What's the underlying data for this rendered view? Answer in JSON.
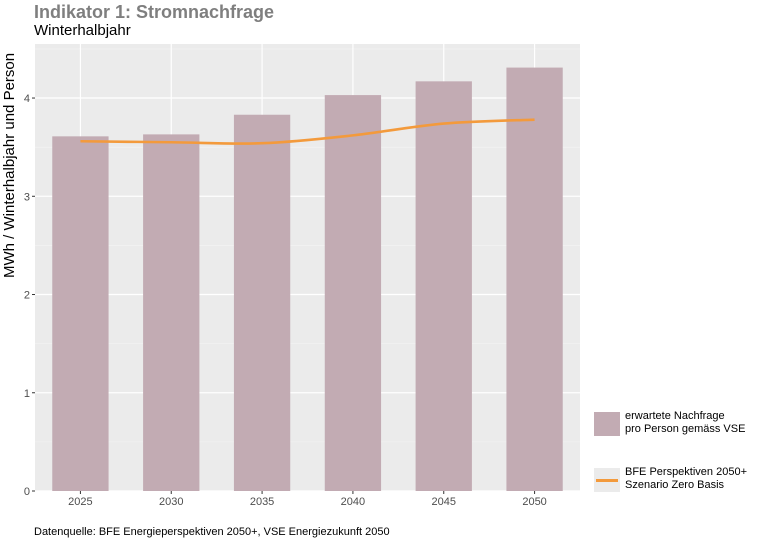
{
  "chart_data": {
    "type": "bar",
    "title": "Indikator 1: Stromnachfrage",
    "subtitle": "Winterhalbjahr",
    "xlabel": "",
    "ylabel": "MWh / Winterhalbjahr und Person",
    "categories": [
      "2025",
      "2030",
      "2035",
      "2040",
      "2045",
      "2050"
    ],
    "ylim": [
      0,
      4.55
    ],
    "yticks": [
      0,
      1,
      2,
      3,
      4
    ],
    "grid": true,
    "series": [
      {
        "name": "erwartete Nachfrage pro Person gemäss VSE",
        "type": "bar",
        "color": "#c2abb3",
        "values": [
          3.61,
          3.63,
          3.83,
          4.03,
          4.17,
          4.31
        ]
      },
      {
        "name": "BFE Perspektiven 2050+ Szenario Zero Basis",
        "type": "line",
        "color": "#f39a3c",
        "values": [
          3.56,
          3.55,
          3.54,
          3.62,
          3.74,
          3.78
        ]
      }
    ],
    "legend": {
      "position": "right",
      "items": [
        {
          "line1": "erwartete Nachfrage",
          "line2": "pro Person gemäss VSE"
        },
        {
          "line1": "BFE Perspektiven 2050+",
          "line2": "Szenario Zero Basis"
        }
      ]
    },
    "caption": "Datenquelle: BFE Energieperspektiven 2050+, VSE Energiezukunft 2050"
  }
}
